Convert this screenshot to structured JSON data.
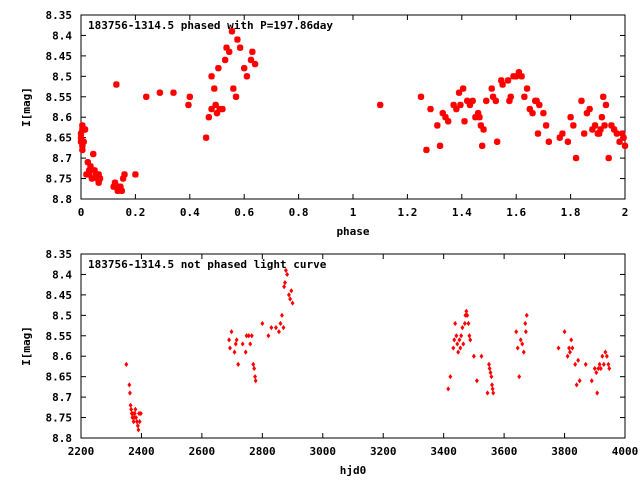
{
  "chart_data": [
    {
      "type": "scatter",
      "title": "183756-1314.5 phased with P=197.86day",
      "xlabel": "phase",
      "ylabel": "I[mag]",
      "xlim": [
        0,
        2
      ],
      "ylim": [
        8.35,
        8.8
      ],
      "y_inverted": true,
      "grid": false,
      "marker": "star",
      "color": "#ff0000",
      "xticks": [
        "0",
        "0.2",
        "0.4",
        "0.6",
        "0.8",
        "1",
        "1.2",
        "1.4",
        "1.6",
        "1.8",
        "2"
      ],
      "xtick_values": [
        0,
        0.2,
        0.4,
        0.6,
        0.8,
        1.0,
        1.2,
        1.4,
        1.6,
        1.8,
        2.0
      ],
      "yticks": [
        "8.35",
        "8.4",
        "8.45",
        "8.5",
        "8.55",
        "8.6",
        "8.65",
        "8.7",
        "8.75",
        "8.8"
      ],
      "ytick_values": [
        8.35,
        8.4,
        8.45,
        8.5,
        8.55,
        8.6,
        8.65,
        8.7,
        8.75,
        8.8
      ],
      "points": [
        [
          0.0,
          8.64
        ],
        [
          0.0,
          8.65
        ],
        [
          0.0,
          8.66
        ],
        [
          0.005,
          8.62
        ],
        [
          0.005,
          8.63
        ],
        [
          0.005,
          8.67
        ],
        [
          0.005,
          8.68
        ],
        [
          0.01,
          8.66
        ],
        [
          0.015,
          8.63
        ],
        [
          0.02,
          8.74
        ],
        [
          0.025,
          8.71
        ],
        [
          0.03,
          8.74
        ],
        [
          0.03,
          8.73
        ],
        [
          0.035,
          8.72
        ],
        [
          0.04,
          8.75
        ],
        [
          0.045,
          8.69
        ],
        [
          0.05,
          8.73
        ],
        [
          0.055,
          8.74
        ],
        [
          0.06,
          8.75
        ],
        [
          0.065,
          8.74
        ],
        [
          0.065,
          8.76
        ],
        [
          0.07,
          8.75
        ],
        [
          0.12,
          8.77
        ],
        [
          0.125,
          8.76
        ],
        [
          0.13,
          8.77
        ],
        [
          0.135,
          8.78
        ],
        [
          0.14,
          8.77
        ],
        [
          0.145,
          8.77
        ],
        [
          0.15,
          8.78
        ],
        [
          0.155,
          8.75
        ],
        [
          0.16,
          8.74
        ],
        [
          0.2,
          8.74
        ],
        [
          0.13,
          8.52
        ],
        [
          0.24,
          8.55
        ],
        [
          0.29,
          8.54
        ],
        [
          0.34,
          8.54
        ],
        [
          0.395,
          8.57
        ],
        [
          0.4,
          8.55
        ],
        [
          0.46,
          8.65
        ],
        [
          0.47,
          8.6
        ],
        [
          0.48,
          8.58
        ],
        [
          0.48,
          8.5
        ],
        [
          0.49,
          8.53
        ],
        [
          0.495,
          8.57
        ],
        [
          0.5,
          8.59
        ],
        [
          0.505,
          8.48
        ],
        [
          0.51,
          8.58
        ],
        [
          0.52,
          8.58
        ],
        [
          0.53,
          8.46
        ],
        [
          0.535,
          8.43
        ],
        [
          0.545,
          8.44
        ],
        [
          0.555,
          8.39
        ],
        [
          0.56,
          8.53
        ],
        [
          0.57,
          8.55
        ],
        [
          0.575,
          8.41
        ],
        [
          0.585,
          8.43
        ],
        [
          0.6,
          8.48
        ],
        [
          0.61,
          8.5
        ],
        [
          0.625,
          8.46
        ],
        [
          0.63,
          8.44
        ],
        [
          0.64,
          8.47
        ],
        [
          1.1,
          8.57
        ],
        [
          1.25,
          8.55
        ],
        [
          1.27,
          8.68
        ],
        [
          1.285,
          8.58
        ],
        [
          1.31,
          8.62
        ],
        [
          1.32,
          8.67
        ],
        [
          1.33,
          8.59
        ],
        [
          1.34,
          8.6
        ],
        [
          1.35,
          8.61
        ],
        [
          1.37,
          8.57
        ],
        [
          1.38,
          8.58
        ],
        [
          1.39,
          8.54
        ],
        [
          1.395,
          8.57
        ],
        [
          1.405,
          8.53
        ],
        [
          1.41,
          8.61
        ],
        [
          1.42,
          8.56
        ],
        [
          1.43,
          8.57
        ],
        [
          1.44,
          8.56
        ],
        [
          1.45,
          8.6
        ],
        [
          1.46,
          8.59
        ],
        [
          1.465,
          8.6
        ],
        [
          1.47,
          8.62
        ],
        [
          1.475,
          8.67
        ],
        [
          1.48,
          8.63
        ],
        [
          1.49,
          8.56
        ],
        [
          1.51,
          8.53
        ],
        [
          1.515,
          8.55
        ],
        [
          1.525,
          8.56
        ],
        [
          1.53,
          8.66
        ],
        [
          1.545,
          8.51
        ],
        [
          1.55,
          8.52
        ],
        [
          1.57,
          8.51
        ],
        [
          1.575,
          8.56
        ],
        [
          1.58,
          8.55
        ],
        [
          1.59,
          8.5
        ],
        [
          1.6,
          8.5
        ],
        [
          1.61,
          8.49
        ],
        [
          1.62,
          8.5
        ],
        [
          1.63,
          8.55
        ],
        [
          1.64,
          8.53
        ],
        [
          1.65,
          8.58
        ],
        [
          1.66,
          8.59
        ],
        [
          1.67,
          8.56
        ],
        [
          1.675,
          8.56
        ],
        [
          1.68,
          8.64
        ],
        [
          1.685,
          8.57
        ],
        [
          1.7,
          8.59
        ],
        [
          1.71,
          8.62
        ],
        [
          1.72,
          8.66
        ],
        [
          1.76,
          8.65
        ],
        [
          1.77,
          8.64
        ],
        [
          1.79,
          8.66
        ],
        [
          1.8,
          8.6
        ],
        [
          1.81,
          8.62
        ],
        [
          1.82,
          8.7
        ],
        [
          1.84,
          8.56
        ],
        [
          1.85,
          8.64
        ],
        [
          1.86,
          8.59
        ],
        [
          1.87,
          8.58
        ],
        [
          1.88,
          8.63
        ],
        [
          1.89,
          8.62
        ],
        [
          1.9,
          8.64
        ],
        [
          1.905,
          8.64
        ],
        [
          1.91,
          8.63
        ],
        [
          1.915,
          8.6
        ],
        [
          1.92,
          8.55
        ],
        [
          1.925,
          8.62
        ],
        [
          1.93,
          8.57
        ],
        [
          1.94,
          8.7
        ],
        [
          1.95,
          8.62
        ],
        [
          1.96,
          8.63
        ],
        [
          1.97,
          8.64
        ],
        [
          1.98,
          8.66
        ],
        [
          1.99,
          8.64
        ],
        [
          1.995,
          8.65
        ],
        [
          2.0,
          8.67
        ]
      ]
    },
    {
      "type": "scatter",
      "title": "183756-1314.5 not phased light curve",
      "xlabel": "hjd0",
      "ylabel": "I[mag]",
      "xlim": [
        2200,
        4000
      ],
      "ylim": [
        8.35,
        8.8
      ],
      "y_inverted": true,
      "grid": false,
      "marker": "diamond",
      "color": "#ff0000",
      "xticks": [
        "2200",
        "2400",
        "2600",
        "2800",
        "3000",
        "3200",
        "3400",
        "3600",
        "3800",
        "4000"
      ],
      "xtick_values": [
        2200,
        2400,
        2600,
        2800,
        3000,
        3200,
        3400,
        3600,
        3800,
        4000
      ],
      "yticks": [
        "8.35",
        "8.4",
        "8.45",
        "8.5",
        "8.55",
        "8.6",
        "8.65",
        "8.7",
        "8.75",
        "8.8"
      ],
      "ytick_values": [
        8.35,
        8.4,
        8.45,
        8.5,
        8.55,
        8.6,
        8.65,
        8.7,
        8.75,
        8.8
      ],
      "points": [
        [
          2350,
          8.62
        ],
        [
          2360,
          8.67
        ],
        [
          2362,
          8.69
        ],
        [
          2364,
          8.72
        ],
        [
          2366,
          8.73
        ],
        [
          2368,
          8.74
        ],
        [
          2370,
          8.75
        ],
        [
          2372,
          8.74
        ],
        [
          2374,
          8.76
        ],
        [
          2376,
          8.75
        ],
        [
          2378,
          8.74
        ],
        [
          2380,
          8.73
        ],
        [
          2382,
          8.75
        ],
        [
          2385,
          8.76
        ],
        [
          2388,
          8.77
        ],
        [
          2390,
          8.78
        ],
        [
          2392,
          8.74
        ],
        [
          2394,
          8.76
        ],
        [
          2398,
          8.74
        ],
        [
          2690,
          8.56
        ],
        [
          2693,
          8.58
        ],
        [
          2698,
          8.54
        ],
        [
          2708,
          8.59
        ],
        [
          2712,
          8.57
        ],
        [
          2715,
          8.56
        ],
        [
          2720,
          8.62
        ],
        [
          2735,
          8.57
        ],
        [
          2745,
          8.59
        ],
        [
          2748,
          8.55
        ],
        [
          2755,
          8.55
        ],
        [
          2760,
          8.57
        ],
        [
          2765,
          8.55
        ],
        [
          2770,
          8.62
        ],
        [
          2773,
          8.63
        ],
        [
          2776,
          8.65
        ],
        [
          2778,
          8.66
        ],
        [
          2800,
          8.52
        ],
        [
          2820,
          8.55
        ],
        [
          2830,
          8.53
        ],
        [
          2845,
          8.53
        ],
        [
          2855,
          8.54
        ],
        [
          2860,
          8.52
        ],
        [
          2865,
          8.5
        ],
        [
          2870,
          8.53
        ],
        [
          2872,
          8.43
        ],
        [
          2875,
          8.42
        ],
        [
          2878,
          8.39
        ],
        [
          2882,
          8.4
        ],
        [
          2888,
          8.45
        ],
        [
          2892,
          8.46
        ],
        [
          2896,
          8.44
        ],
        [
          2900,
          8.47
        ],
        [
          3415,
          8.68
        ],
        [
          3422,
          8.65
        ],
        [
          3432,
          8.58
        ],
        [
          3435,
          8.56
        ],
        [
          3438,
          8.52
        ],
        [
          3442,
          8.55
        ],
        [
          3445,
          8.57
        ],
        [
          3448,
          8.59
        ],
        [
          3452,
          8.56
        ],
        [
          3455,
          8.58
        ],
        [
          3458,
          8.55
        ],
        [
          3462,
          8.53
        ],
        [
          3465,
          8.57
        ],
        [
          3470,
          8.52
        ],
        [
          3472,
          8.5
        ],
        [
          3475,
          8.49
        ],
        [
          3478,
          8.5
        ],
        [
          3482,
          8.52
        ],
        [
          3485,
          8.55
        ],
        [
          3488,
          8.56
        ],
        [
          3500,
          8.6
        ],
        [
          3510,
          8.66
        ],
        [
          3525,
          8.6
        ],
        [
          3545,
          8.69
        ],
        [
          3550,
          8.62
        ],
        [
          3552,
          8.63
        ],
        [
          3555,
          8.64
        ],
        [
          3558,
          8.65
        ],
        [
          3560,
          8.67
        ],
        [
          3562,
          8.68
        ],
        [
          3564,
          8.69
        ],
        [
          3640,
          8.54
        ],
        [
          3645,
          8.58
        ],
        [
          3650,
          8.65
        ],
        [
          3655,
          8.56
        ],
        [
          3660,
          8.57
        ],
        [
          3665,
          8.59
        ],
        [
          3670,
          8.52
        ],
        [
          3672,
          8.54
        ],
        [
          3675,
          8.5
        ],
        [
          3780,
          8.58
        ],
        [
          3800,
          8.54
        ],
        [
          3810,
          8.6
        ],
        [
          3815,
          8.58
        ],
        [
          3818,
          8.59
        ],
        [
          3822,
          8.56
        ],
        [
          3826,
          8.58
        ],
        [
          3835,
          8.62
        ],
        [
          3840,
          8.67
        ],
        [
          3845,
          8.61
        ],
        [
          3850,
          8.66
        ],
        [
          3870,
          8.62
        ],
        [
          3890,
          8.66
        ],
        [
          3900,
          8.63
        ],
        [
          3905,
          8.64
        ],
        [
          3908,
          8.69
        ],
        [
          3912,
          8.63
        ],
        [
          3916,
          8.62
        ],
        [
          3920,
          8.63
        ],
        [
          3925,
          8.6
        ],
        [
          3930,
          8.62
        ],
        [
          3935,
          8.59
        ],
        [
          3940,
          8.6
        ],
        [
          3945,
          8.62
        ],
        [
          3948,
          8.63
        ]
      ]
    }
  ]
}
